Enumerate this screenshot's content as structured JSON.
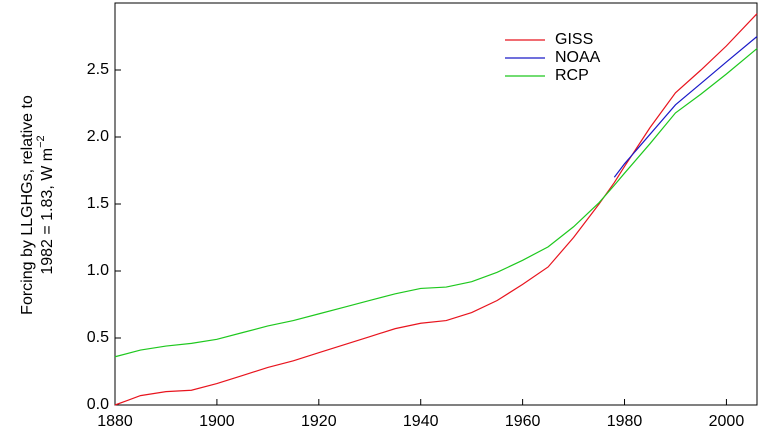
{
  "chart_data": {
    "type": "line",
    "ylabel": {
      "line1": "Forcing by LLGHGs, relative to",
      "line2": "1982 = 1.83, W m",
      "superscript": "−2"
    },
    "x": [
      1880,
      1885,
      1890,
      1895,
      1900,
      1905,
      1910,
      1915,
      1920,
      1925,
      1930,
      1935,
      1940,
      1945,
      1950,
      1955,
      1960,
      1965,
      1970,
      1975,
      1978,
      1980,
      1985,
      1990,
      1995,
      2000,
      2006
    ],
    "series": [
      {
        "name": "GISS",
        "color": "#e8141e",
        "values": [
          0.0,
          0.07,
          0.1,
          0.11,
          0.16,
          0.22,
          0.28,
          0.33,
          0.39,
          0.45,
          0.51,
          0.57,
          0.61,
          0.63,
          0.69,
          0.78,
          0.9,
          1.03,
          1.25,
          1.5,
          1.66,
          1.78,
          2.07,
          2.33,
          2.5,
          2.68,
          2.92
        ]
      },
      {
        "name": "NOAA",
        "color": "#1a1ac8",
        "values": [
          null,
          null,
          null,
          null,
          null,
          null,
          null,
          null,
          null,
          null,
          null,
          null,
          null,
          null,
          null,
          null,
          null,
          null,
          null,
          null,
          1.7,
          1.8,
          2.02,
          2.24,
          2.4,
          2.56,
          2.75
        ]
      },
      {
        "name": "RCP",
        "color": "#1ec81e",
        "values": [
          0.36,
          0.41,
          0.44,
          0.46,
          0.49,
          0.54,
          0.59,
          0.63,
          0.68,
          0.73,
          0.78,
          0.83,
          0.87,
          0.88,
          0.92,
          0.99,
          1.08,
          1.18,
          1.33,
          1.51,
          1.64,
          1.73,
          1.95,
          2.18,
          2.32,
          2.47,
          2.66
        ]
      }
    ],
    "xlim": [
      1880,
      2006
    ],
    "xticks": [
      1880,
      1900,
      1920,
      1940,
      1960,
      1980,
      2000
    ],
    "ylim": [
      0,
      3
    ],
    "yticks": [
      {
        "value": 0,
        "label": "0.0"
      },
      0.5,
      {
        "value": 1,
        "label": "1.0"
      },
      1.5,
      {
        "value": 2,
        "label": "2.0"
      },
      2.5
    ],
    "grid": false,
    "legend": "top-right"
  }
}
